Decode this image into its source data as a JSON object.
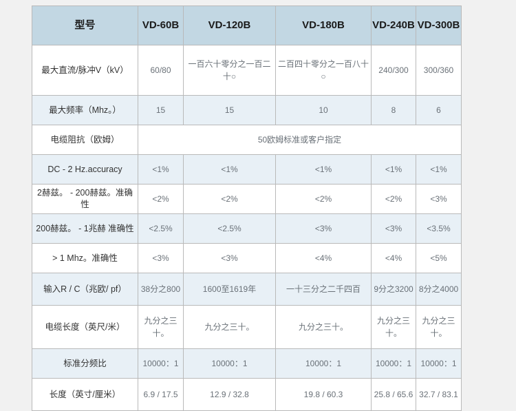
{
  "page": {
    "background_color": "#f1f1f1",
    "header_bg_color": "#c2d7e3",
    "alt_row_bg_color": "#e8f0f6",
    "value_text_color": "#697077",
    "label_text_color": "#333333"
  },
  "table": {
    "header": {
      "label": "型号",
      "models": [
        "VD-60B",
        "VD-120B",
        "VD-180B",
        "VD-240B",
        "VD-300B"
      ]
    },
    "rows": [
      {
        "label": "最大直流/脉冲V（kV）",
        "values": [
          "60/80",
          "一百六十零分之一百二十○",
          "二百四十零分之一百八十○",
          "240/300",
          "300/360"
        ]
      },
      {
        "label": "最大频率（Mhz。）",
        "values": [
          "15",
          "15",
          "10",
          "8",
          "6"
        ]
      },
      {
        "label": "电缆阻抗（欧姆）",
        "span_value": "50欧姆标准或客户指定"
      },
      {
        "label": "DC - 2 Hz.accuracy",
        "values": [
          "<1%",
          "<1%",
          "<1%",
          "<1%",
          "<1%"
        ]
      },
      {
        "label": "2赫兹。 - 200赫兹。准确性",
        "values": [
          "<2%",
          "<2%",
          "<2%",
          "<2%",
          "<3%"
        ]
      },
      {
        "label": "200赫兹。 - 1兆赫 准确性",
        "values": [
          "<2.5%",
          "<2.5%",
          "<3%",
          "<3%",
          "<3.5%"
        ]
      },
      {
        "label": "> 1 Mhz。准确性",
        "values": [
          "<3%",
          "<3%",
          "<4%",
          "<4%",
          "<5%"
        ]
      },
      {
        "label": "输入R / C（兆欧/ pf）",
        "values": [
          "38分之800",
          "1600至1619年",
          "一十三分之二千四百",
          "9分之3200",
          "8分之4000"
        ]
      },
      {
        "label": "电缆长度（英尺/米）",
        "values": [
          "九分之三十。",
          "九分之三十。",
          "九分之三十。",
          "九分之三十。",
          "九分之三十。"
        ]
      },
      {
        "label": "标准分频比",
        "values": [
          "10000：1",
          "10000：1",
          "10000：1",
          "10000：1",
          "10000：1"
        ]
      },
      {
        "label": "长度（英寸/厘米）",
        "values": [
          "6.9 / 17.5",
          "12.9 / 32.8",
          "19.8 / 60.3",
          "25.8 / 65.6",
          "32.7 / 83.1"
        ]
      }
    ]
  }
}
